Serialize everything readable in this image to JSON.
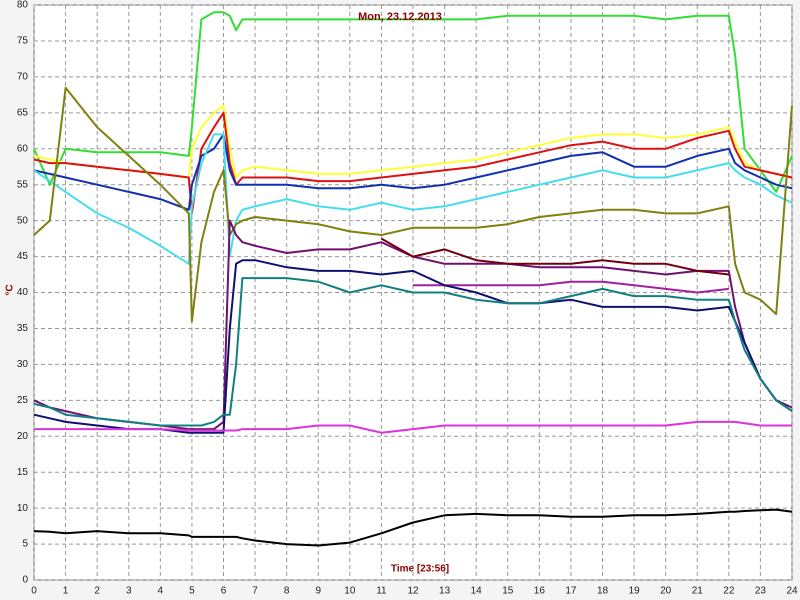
{
  "chart_data": {
    "type": "line",
    "title": "Mon, 23.12.2013",
    "y_label": "°C",
    "x_label": "Time [23:56]",
    "x": [
      0,
      0.5,
      1,
      2,
      3,
      4,
      4.9,
      5,
      5.3,
      5.7,
      6,
      6.2,
      6.4,
      6.6,
      7,
      8,
      9,
      10,
      11,
      12,
      13,
      14,
      15,
      16,
      17,
      18,
      19,
      20,
      21,
      22,
      22.2,
      22.5,
      23,
      23.5,
      24
    ],
    "xlim": [
      0,
      24
    ],
    "xticks": [
      0,
      1,
      2,
      3,
      4,
      5,
      6,
      7,
      8,
      9,
      10,
      11,
      12,
      13,
      14,
      15,
      16,
      17,
      18,
      19,
      20,
      21,
      22,
      23,
      24
    ],
    "ylim": [
      0,
      80
    ],
    "yticks": [
      0,
      5,
      10,
      15,
      20,
      25,
      30,
      35,
      40,
      45,
      50,
      55,
      60,
      65,
      70,
      75,
      80
    ],
    "grid": true,
    "series": [
      {
        "color": "#33dd33",
        "values": [
          60,
          55,
          60,
          59.5,
          59.5,
          59.5,
          59,
          63,
          78,
          79,
          79,
          78.5,
          76.5,
          78,
          78,
          78,
          78,
          78,
          78,
          78,
          78,
          78,
          78.5,
          78.5,
          78.5,
          78.5,
          78.5,
          78,
          78.5,
          78.5,
          73,
          60,
          57,
          54,
          59
        ]
      },
      {
        "color": "#ffff33",
        "values": [
          59,
          58.5,
          58,
          57.5,
          57,
          56.5,
          56,
          60,
          63,
          65,
          66,
          60,
          56,
          57,
          57.5,
          57,
          56.5,
          56.5,
          57,
          57.5,
          58,
          58.5,
          59.5,
          60.5,
          61.5,
          62,
          62,
          61.5,
          62,
          63,
          61,
          58,
          57,
          56.5,
          56
        ]
      },
      {
        "color": "#dd1111",
        "values": [
          58.5,
          58,
          58,
          57.5,
          57,
          56.5,
          56,
          51,
          60,
          63,
          65,
          58,
          55,
          56,
          56,
          56,
          55.5,
          55.5,
          56,
          56.5,
          57,
          57.5,
          58.5,
          59.5,
          60.5,
          61,
          60,
          60,
          61.5,
          62.5,
          60,
          57.5,
          57,
          56.5,
          56
        ]
      },
      {
        "color": "#1030b0",
        "values": [
          57,
          56.5,
          56,
          55,
          54,
          53,
          51.5,
          55,
          59,
          60,
          62,
          57,
          55,
          55,
          55,
          55,
          54.5,
          54.5,
          55,
          54.5,
          55,
          56,
          57,
          58,
          59,
          59.5,
          57.5,
          57.5,
          59,
          60,
          58,
          57,
          56,
          55,
          54.5
        ]
      },
      {
        "color": "#44ddee",
        "values": [
          57,
          55.5,
          54,
          51,
          49,
          46.5,
          44,
          52,
          58,
          62,
          62,
          45,
          50,
          51.5,
          52,
          53,
          52,
          51.5,
          52.5,
          51.5,
          52,
          53,
          54,
          55,
          56,
          57,
          56,
          56,
          57,
          58,
          57,
          56,
          55,
          53.5,
          52.5
        ]
      },
      {
        "color": "#808010",
        "values": [
          48,
          50,
          68.5,
          63,
          59,
          55,
          51,
          36,
          47,
          54,
          57,
          48,
          49.5,
          50,
          50.5,
          50,
          49.5,
          48.5,
          48,
          49,
          49,
          49,
          49.5,
          50.5,
          51,
          51.5,
          51.5,
          51,
          51,
          52,
          44,
          40,
          39,
          37,
          66
        ]
      },
      {
        "color": "#701070",
        "values": [
          25,
          24,
          23.5,
          22.5,
          22,
          21.5,
          21,
          21,
          21,
          21,
          22,
          50,
          48,
          47,
          46.5,
          45.5,
          46,
          46,
          47,
          45,
          44,
          44,
          44,
          43.5,
          43.5,
          43.5,
          43,
          42.5,
          43,
          43,
          38,
          33,
          28,
          25,
          24
        ]
      },
      {
        "color": "#700010",
        "values": [
          null,
          null,
          null,
          null,
          null,
          null,
          null,
          null,
          null,
          null,
          null,
          null,
          null,
          null,
          null,
          null,
          null,
          null,
          47.5,
          45,
          46,
          44.5,
          44,
          44,
          44,
          44.5,
          44,
          44,
          43,
          42.5,
          null,
          null,
          null,
          null,
          null
        ]
      },
      {
        "color": "#a020a0",
        "values": [
          null,
          null,
          null,
          null,
          null,
          null,
          null,
          null,
          null,
          null,
          null,
          null,
          null,
          null,
          null,
          null,
          null,
          null,
          null,
          41,
          41,
          41,
          41,
          41,
          41.5,
          41.5,
          41,
          40.5,
          40,
          40.5,
          null,
          null,
          null,
          null,
          null
        ]
      },
      {
        "color": "#101070",
        "values": [
          23,
          22.5,
          22,
          21.5,
          21,
          21,
          20.5,
          20.5,
          20.5,
          20.5,
          20.5,
          35,
          44,
          44.5,
          44.5,
          43.5,
          43,
          43,
          42.5,
          43,
          41,
          40,
          38.5,
          38.5,
          39,
          38,
          38,
          38,
          37.5,
          38,
          36,
          33,
          28,
          25,
          23.5
        ]
      },
      {
        "color": "#108080",
        "values": [
          24.5,
          24,
          23,
          22.5,
          22,
          21.5,
          21.5,
          21.5,
          21.5,
          22,
          23,
          23,
          30,
          42,
          42,
          42,
          41.5,
          40,
          41,
          40,
          40,
          39,
          38.5,
          38.5,
          39.5,
          40.5,
          39.5,
          39.5,
          39,
          39,
          36,
          32,
          28,
          25,
          23.5
        ]
      },
      {
        "color": "#dd33dd",
        "values": [
          21,
          21,
          21,
          21,
          21,
          21,
          20.8,
          20.8,
          20.8,
          20.8,
          20.8,
          20.8,
          20.8,
          21,
          21,
          21,
          21.5,
          21.5,
          20.5,
          21,
          21.5,
          21.5,
          21.5,
          21.5,
          21.5,
          21.5,
          21.5,
          21.5,
          22,
          22,
          22,
          21.8,
          21.5,
          21.5,
          21.5
        ]
      },
      {
        "color": "#000000",
        "values": [
          6.8,
          6.7,
          6.5,
          6.8,
          6.5,
          6.5,
          6.2,
          6,
          6,
          6,
          6,
          6,
          6,
          5.8,
          5.5,
          5,
          4.8,
          5.2,
          6.5,
          8,
          9,
          9.2,
          9,
          9,
          8.8,
          8.8,
          9,
          9,
          9.2,
          9.5,
          9.5,
          9.6,
          9.7,
          9.8,
          9.5
        ]
      }
    ]
  }
}
